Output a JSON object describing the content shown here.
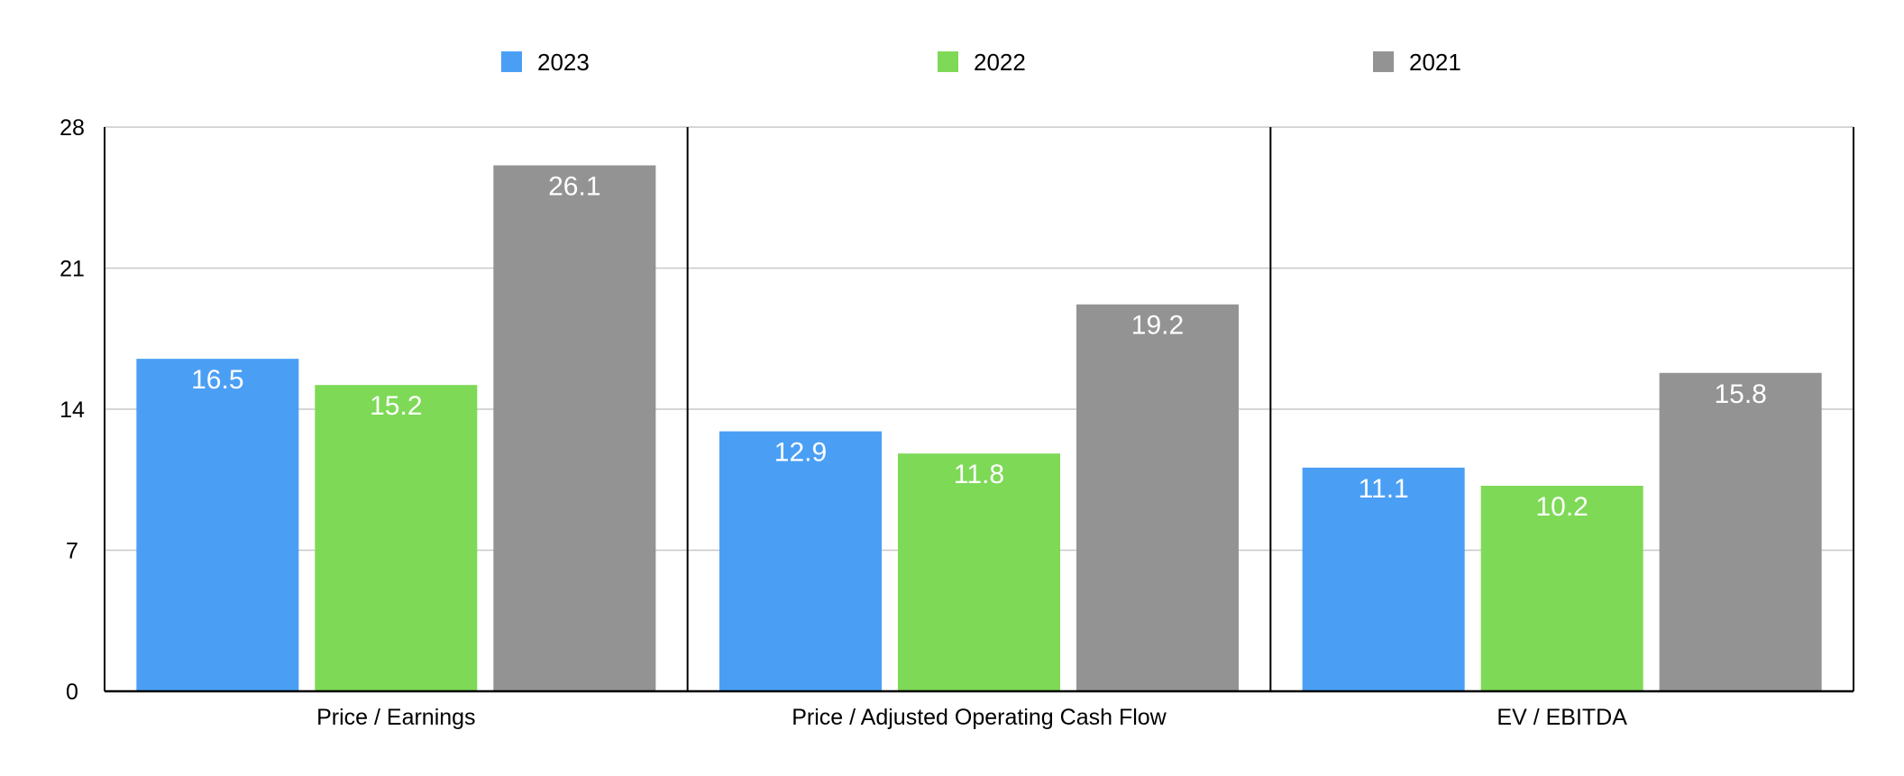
{
  "chart_data": {
    "type": "bar",
    "categories": [
      "Price / Earnings",
      "Price / Adjusted Operating Cash Flow",
      "EV / EBITDA"
    ],
    "series": [
      {
        "name": "2023",
        "color": "#4a9ff5",
        "values": [
          16.5,
          12.9,
          11.1
        ]
      },
      {
        "name": "2022",
        "color": "#7ed957",
        "values": [
          15.2,
          11.8,
          10.2
        ]
      },
      {
        "name": "2021",
        "color": "#939393",
        "values": [
          26.1,
          19.2,
          15.8
        ]
      }
    ],
    "yticks": [
      0,
      7,
      14,
      21,
      28
    ],
    "ylim": [
      0,
      28
    ],
    "grid": true,
    "legend_position": "top",
    "data_labels": true
  }
}
